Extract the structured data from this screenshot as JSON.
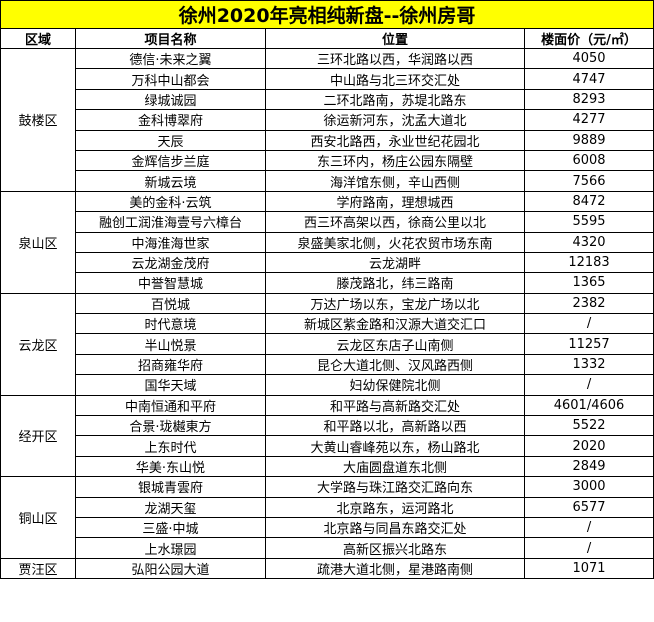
{
  "title": "徐州2020年亮相纯新盘--徐州房哥",
  "colors": {
    "title_bg": "#ffff00",
    "border": "#000000"
  },
  "headers": {
    "district": "区域",
    "name": "项目名称",
    "location": "位置",
    "price": "楼面价（元/㎡）"
  },
  "groups": [
    {
      "district": "鼓楼区",
      "rows": [
        {
          "name": "德信·未来之翼",
          "location": "三环北路以西，华润路以西",
          "price": "4050"
        },
        {
          "name": "万科中山都会",
          "location": "中山路与北三环交汇处",
          "price": "4747"
        },
        {
          "name": "绿城诚园",
          "location": "二环北路南，苏堤北路东",
          "price": "8293"
        },
        {
          "name": "金科博翠府",
          "location": "徐运新河东，沈孟大道北",
          "price": "4277"
        },
        {
          "name": "天辰",
          "location": "西安北路西，永业世纪花园北",
          "price": "9889"
        },
        {
          "name": "金辉信步兰庭",
          "location": "东三环内，杨庄公园东隔壁",
          "price": "6008"
        },
        {
          "name": "新城云境",
          "location": "海洋馆东侧，辛山西侧",
          "price": "7566"
        }
      ]
    },
    {
      "district": "泉山区",
      "rows": [
        {
          "name": "美的金科·云筑",
          "location": "学府路南，理想城西",
          "price": "8472"
        },
        {
          "name": "融创工润淮海壹号六樟台",
          "location": "西三环高架以西，徐商公里以北",
          "price": "5595"
        },
        {
          "name": "中海淮海世家",
          "location": "泉盛美家北侧，火花农贸市场东南",
          "price": "4320"
        },
        {
          "name": "云龙湖金茂府",
          "location": "云龙湖畔",
          "price": "12183"
        },
        {
          "name": "中誉智慧城",
          "location": "滕茂路北，纬三路南",
          "price": "1365"
        }
      ]
    },
    {
      "district": "云龙区",
      "rows": [
        {
          "name": "百悦城",
          "location": "万达广场以东，宝龙广场以北",
          "price": "2382"
        },
        {
          "name": "时代意境",
          "location": "新城区紫金路和汉源大道交汇口",
          "price": "/"
        },
        {
          "name": "半山悦景",
          "location": "云龙区东店子山南侧",
          "price": "11257"
        },
        {
          "name": "招商雍华府",
          "location": "昆仑大道北侧、汉风路西侧",
          "price": "1332"
        },
        {
          "name": "国华天域",
          "location": "妇幼保健院北侧",
          "price": "/"
        }
      ]
    },
    {
      "district": "经开区",
      "rows": [
        {
          "name": "中南恒通和平府",
          "location": "和平路与高新路交汇处",
          "price": "4601/4606"
        },
        {
          "name": "合景·珑樾東方",
          "location": "和平路以北，高新路以西",
          "price": "5522"
        },
        {
          "name": "上东时代",
          "location": "大黄山睿峰苑以东，杨山路北",
          "price": "2020"
        },
        {
          "name": "华美·东山悦",
          "location": "大庙圆盘道东北侧",
          "price": "2849"
        }
      ]
    },
    {
      "district": "铜山区",
      "rows": [
        {
          "name": "银城青雲府",
          "location": "大学路与珠江路交汇路向东",
          "price": "3000"
        },
        {
          "name": "龙湖天玺",
          "location": "北京路东，运河路北",
          "price": "6577"
        },
        {
          "name": "三盛·中城",
          "location": "北京路与同昌东路交汇处",
          "price": "/"
        },
        {
          "name": "上水璟园",
          "location": "高新区振兴北路东",
          "price": "/"
        }
      ]
    },
    {
      "district": "贾汪区",
      "rows": [
        {
          "name": "弘阳公园大道",
          "location": "疏港大道北侧，星港路南侧",
          "price": "1071"
        }
      ]
    }
  ]
}
